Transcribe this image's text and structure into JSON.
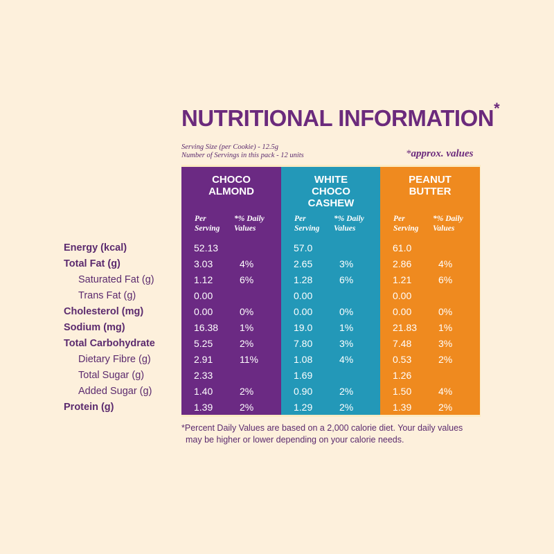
{
  "title": "NUTRITIONAL INFORMATION",
  "title_mark": "*",
  "serving": {
    "size": "Serving Size (per Cookie) - 12.5g",
    "count": "Number of Servings in this pack - 12 units"
  },
  "approx": {
    "star": "*",
    "text": "approx. values"
  },
  "columns": [
    {
      "name": "CHOCO\nALMOND",
      "color": "#6b2a83",
      "per_label": "Per\nServing",
      "dv_label": "*% Daily\nValues"
    },
    {
      "name": "WHITE\nCHOCO\nCASHEW",
      "color": "#2398b8",
      "per_label": "Per\nServing",
      "dv_label": "*% Daily\nValues"
    },
    {
      "name": "PEANUT\nBUTTER",
      "color": "#ef8a1f",
      "per_label": "Per\nServing",
      "dv_label": "*% Daily\nValues"
    }
  ],
  "rows": [
    {
      "label": "Energy (kcal)",
      "style": "bold",
      "values": [
        [
          "52.13",
          ""
        ],
        [
          "57.0",
          ""
        ],
        [
          "61.0",
          ""
        ]
      ]
    },
    {
      "label": "Total Fat (g)",
      "style": "bold",
      "values": [
        [
          "3.03",
          "4%"
        ],
        [
          "2.65",
          "3%"
        ],
        [
          "2.86",
          "4%"
        ]
      ]
    },
    {
      "label": "Saturated Fat (g)",
      "style": "indent",
      "values": [
        [
          "1.12",
          "6%"
        ],
        [
          "1.28",
          "6%"
        ],
        [
          "1.21",
          "6%"
        ]
      ]
    },
    {
      "label": "Trans Fat (g)",
      "style": "indent",
      "values": [
        [
          "0.00",
          ""
        ],
        [
          "0.00",
          ""
        ],
        [
          "0.00",
          ""
        ]
      ]
    },
    {
      "label": "Cholesterol (mg)",
      "style": "bold",
      "values": [
        [
          "0.00",
          "0%"
        ],
        [
          "0.00",
          "0%"
        ],
        [
          "0.00",
          "0%"
        ]
      ]
    },
    {
      "label": "Sodium (mg)",
      "style": "bold",
      "values": [
        [
          "16.38",
          "1%"
        ],
        [
          "19.0",
          "1%"
        ],
        [
          "21.83",
          "1%"
        ]
      ]
    },
    {
      "label": "Total Carbohydrate",
      "style": "bold",
      "values": [
        [
          "5.25",
          "2%"
        ],
        [
          "7.80",
          "3%"
        ],
        [
          "7.48",
          "3%"
        ]
      ]
    },
    {
      "label": "Dietary Fibre (g)",
      "style": "indent",
      "values": [
        [
          "2.91",
          "11%"
        ],
        [
          "1.08",
          "4%"
        ],
        [
          "0.53",
          "2%"
        ]
      ]
    },
    {
      "label": "Total Sugar (g)",
      "style": "indent",
      "values": [
        [
          "2.33",
          ""
        ],
        [
          "1.69",
          ""
        ],
        [
          "1.26",
          ""
        ]
      ]
    },
    {
      "label": "Added Sugar (g)",
      "style": "indent",
      "values": [
        [
          "1.40",
          "2%"
        ],
        [
          "0.90",
          "2%"
        ],
        [
          "1.50",
          "4%"
        ]
      ]
    },
    {
      "label": "Protein (g)",
      "style": "bold",
      "values": [
        [
          "1.39",
          "2%"
        ],
        [
          "1.29",
          "2%"
        ],
        [
          "1.39",
          "2%"
        ]
      ]
    }
  ],
  "footnote": {
    "line1": "*Percent Daily Values are based on a 2,000 calorie diet. Your daily values",
    "line2": "may be higher or lower depending on your calorie needs."
  }
}
